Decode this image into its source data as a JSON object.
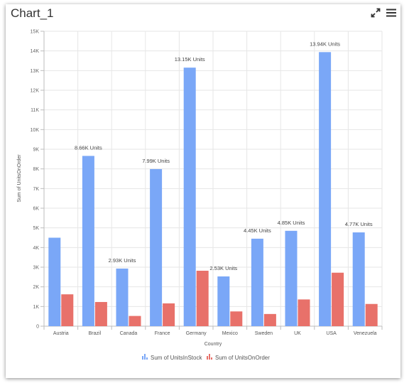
{
  "widget": {
    "title": "Chart_1",
    "tools": [
      "expand-icon",
      "menu-icon"
    ]
  },
  "chart_data": {
    "type": "bar",
    "categories": [
      "Austria",
      "Brazil",
      "Canada",
      "France",
      "Germany",
      "Mexico",
      "Sweden",
      "UK",
      "USA",
      "Venezuela"
    ],
    "series": [
      {
        "name": "Sum of UnitsInStock",
        "color": "#7aa7f7",
        "values": [
          4500,
          8660,
          2930,
          7990,
          13150,
          2530,
          4450,
          4850,
          13940,
          4770
        ]
      },
      {
        "name": "Sum of UnitsOnOrder",
        "color": "#e8716a",
        "values": [
          1620,
          1230,
          520,
          1160,
          2820,
          750,
          620,
          1360,
          2720,
          1130
        ]
      }
    ],
    "data_labels": [
      "",
      "8.66K Units",
      "2.93K Units",
      "7.99K Units",
      "13.15K Units",
      "2.53K Units",
      "4.45K Units",
      "4.85K Units",
      "13.94K Units",
      "4.77K Units"
    ],
    "xlabel": "Country",
    "ylabel": "Sum of UnitsOnOrder",
    "ylim": [
      0,
      15000
    ],
    "yticks": [
      0,
      1000,
      2000,
      3000,
      4000,
      5000,
      6000,
      7000,
      8000,
      9000,
      10000,
      11000,
      12000,
      13000,
      14000,
      15000
    ],
    "ytick_labels": [
      "0",
      "1K",
      "2K",
      "3K",
      "4K",
      "5K",
      "6K",
      "7K",
      "8K",
      "9K",
      "10K",
      "11K",
      "12K",
      "13K",
      "14K",
      "15K"
    ],
    "grid": true,
    "legend": "bottom-center"
  }
}
